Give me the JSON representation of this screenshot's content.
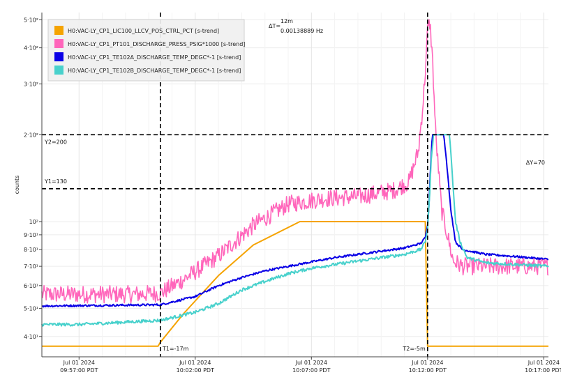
{
  "chart_data": {
    "type": "line",
    "ylabel": "counts",
    "y_scale": "log",
    "ylim": [
      34,
      530
    ],
    "x_tick_labels": [
      {
        "date": "Jul 01 2024",
        "time": "09:57:00 PDT",
        "t": 0
      },
      {
        "date": "Jul 01 2024",
        "time": "10:02:00 PDT",
        "t": 5
      },
      {
        "date": "Jul 01 2024",
        "time": "10:07:00 PDT",
        "t": 10
      },
      {
        "date": "Jul 01 2024",
        "time": "10:12:00 PDT",
        "t": 15
      },
      {
        "date": "Jul 01 2024",
        "time": "10:17:00 PDT",
        "t": 20
      }
    ],
    "xlim": [
      -1.6,
      20.2
    ],
    "y_tick_labels": [
      {
        "label": "5·10²",
        "value": 500
      },
      {
        "label": "4·10²",
        "value": 400
      },
      {
        "label": "3·10²",
        "value": 300
      },
      {
        "label": "2·10²",
        "value": 200
      },
      {
        "label": "10²",
        "value": 100
      },
      {
        "label": "9·10¹",
        "value": 90
      },
      {
        "label": "8·10¹",
        "value": 80
      },
      {
        "label": "7·10¹",
        "value": 70
      },
      {
        "label": "6·10¹",
        "value": 60
      },
      {
        "label": "5·10¹",
        "value": 50
      },
      {
        "label": "4·10¹",
        "value": 40
      }
    ],
    "grid": true,
    "legend_position": "top-left",
    "series": [
      {
        "name": "H0:VAC-LY_CP1_LIC100_LLCV_POS_CTRL_PCT [s-trend]",
        "color": "#f5a300",
        "points": [
          [
            -1.6,
            37
          ],
          [
            3.4,
            37
          ],
          [
            3.5,
            38.2
          ],
          [
            4.5,
            48
          ],
          [
            6,
            65
          ],
          [
            7.5,
            83
          ],
          [
            9.5,
            100
          ],
          [
            14.9,
            100
          ],
          [
            15.0,
            37
          ],
          [
            20.2,
            37
          ]
        ]
      },
      {
        "name": "H0:VAC-LY_CP1_PT101_DISCHARGE_PRESS_PSIG*1000 [s-trend]",
        "color": "#ff66bb",
        "points": [
          [
            -1.6,
            56
          ],
          [
            2.5,
            56
          ],
          [
            3.5,
            56.5
          ],
          [
            4.5,
            63
          ],
          [
            6,
            76
          ],
          [
            7.5,
            97
          ],
          [
            9,
            115
          ],
          [
            10.5,
            120
          ],
          [
            12,
            122
          ],
          [
            13.5,
            128
          ],
          [
            14.2,
            137
          ],
          [
            14.6,
            175
          ],
          [
            14.8,
            255
          ],
          [
            14.9,
            330
          ],
          [
            15.0,
            460
          ],
          [
            15.1,
            490
          ],
          [
            15.2,
            380
          ],
          [
            15.35,
            200
          ],
          [
            15.6,
            110
          ],
          [
            15.85,
            90
          ],
          [
            16.1,
            73
          ],
          [
            16.5,
            70
          ],
          [
            18,
            70
          ],
          [
            20.2,
            70
          ]
        ]
      },
      {
        "name": "H0:VAC-LY_CP1_TE102A_DISCHARGE_TEMP_DEGC*-1 [s-trend]",
        "color": "#0a00e6",
        "points": [
          [
            -1.6,
            51
          ],
          [
            3.5,
            51.5
          ],
          [
            5,
            55
          ],
          [
            6,
            60
          ],
          [
            7,
            64
          ],
          [
            8,
            67.5
          ],
          [
            9,
            70
          ],
          [
            10,
            72.5
          ],
          [
            11,
            75
          ],
          [
            12,
            77
          ],
          [
            13,
            79
          ],
          [
            14,
            81
          ],
          [
            14.7,
            84
          ],
          [
            14.9,
            88
          ],
          [
            15.0,
            98
          ],
          [
            15.05,
            110
          ],
          [
            15.12,
            150
          ],
          [
            15.2,
            200
          ],
          [
            15.7,
            200
          ],
          [
            15.85,
            150
          ],
          [
            16,
            110
          ],
          [
            16.2,
            85
          ],
          [
            16.5,
            80
          ],
          [
            17.5,
            77
          ],
          [
            18.5,
            76
          ],
          [
            20.2,
            74
          ]
        ]
      },
      {
        "name": "H0:VAC-LY_CP1_TE102B_DISCHARGE_TEMP_DEGC*-1 [s-trend]",
        "color": "#48d1cc",
        "points": [
          [
            -1.6,
            44
          ],
          [
            0,
            44
          ],
          [
            3.5,
            45.5
          ],
          [
            5,
            48.5
          ],
          [
            6,
            52
          ],
          [
            7,
            58
          ],
          [
            8,
            62
          ],
          [
            9,
            66
          ],
          [
            10,
            69
          ],
          [
            11,
            71
          ],
          [
            12,
            73
          ],
          [
            13,
            75
          ],
          [
            14,
            77
          ],
          [
            14.7,
            80
          ],
          [
            14.9,
            85
          ],
          [
            15.0,
            95
          ],
          [
            15.08,
            120
          ],
          [
            15.15,
            160
          ],
          [
            15.25,
            200
          ],
          [
            15.95,
            200
          ],
          [
            16.05,
            150
          ],
          [
            16.2,
            100
          ],
          [
            16.4,
            85
          ],
          [
            16.7,
            75
          ],
          [
            17.5,
            72
          ],
          [
            20.2,
            70
          ]
        ]
      }
    ],
    "cursors": {
      "T1": {
        "label": "T1=-17m",
        "t": 3.5
      },
      "T2": {
        "label": "T2=-5m",
        "t": 15.0
      },
      "Y1": {
        "label": "Y1=130",
        "value": 130
      },
      "Y2": {
        "label": "Y2=200",
        "value": 200
      },
      "delta_t": {
        "prefix": "ΔT=",
        "value": "12m",
        "freq": "0.00138889 Hz"
      },
      "delta_y": "ΔY=70"
    }
  }
}
